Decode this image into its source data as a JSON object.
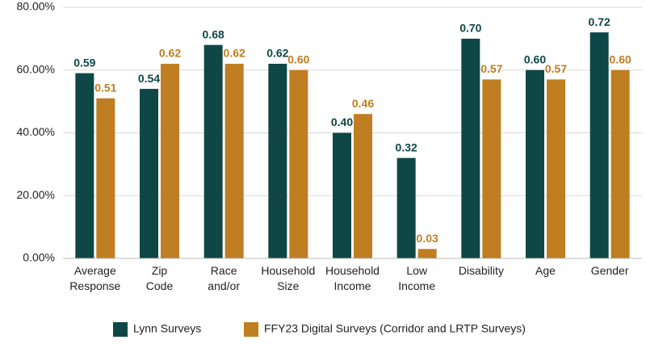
{
  "chart_data": {
    "type": "bar",
    "categories": [
      "Average Response",
      "Zip Code",
      "Race and/or",
      "Household Size",
      "Household Income",
      "Low Income",
      "Disability",
      "Age",
      "Gender"
    ],
    "series": [
      {
        "name": "Lynn Surveys",
        "color": "#0f4746",
        "values": [
          59,
          54,
          68,
          62,
          40,
          32,
          70,
          60,
          72
        ],
        "value_labels": [
          "0.59",
          "0.54",
          "0.68",
          "0.62",
          "0.40",
          "0.32",
          "0.70",
          "0.60",
          "0.72"
        ]
      },
      {
        "name": "FFY23 Digital Surveys (Corridor and LRTP Surveys)",
        "color": "#bf7e22",
        "values": [
          51,
          62,
          62,
          60,
          46,
          3,
          57,
          57,
          60
        ],
        "value_labels": [
          "0.51",
          "0.62",
          "0.62",
          "0.60",
          "0.46",
          "0.03",
          "0.57",
          "0.57",
          "0.60"
        ]
      }
    ],
    "ylim": [
      0,
      80
    ],
    "yticks": [
      {
        "value": 0,
        "label": "0.00%"
      },
      {
        "value": 20,
        "label": "20.00%"
      },
      {
        "value": 40,
        "label": "40.00%"
      },
      {
        "value": 60,
        "label": "60.00%"
      },
      {
        "value": 80,
        "label": "80.00%"
      }
    ],
    "grid": true,
    "legend": "bottom"
  }
}
